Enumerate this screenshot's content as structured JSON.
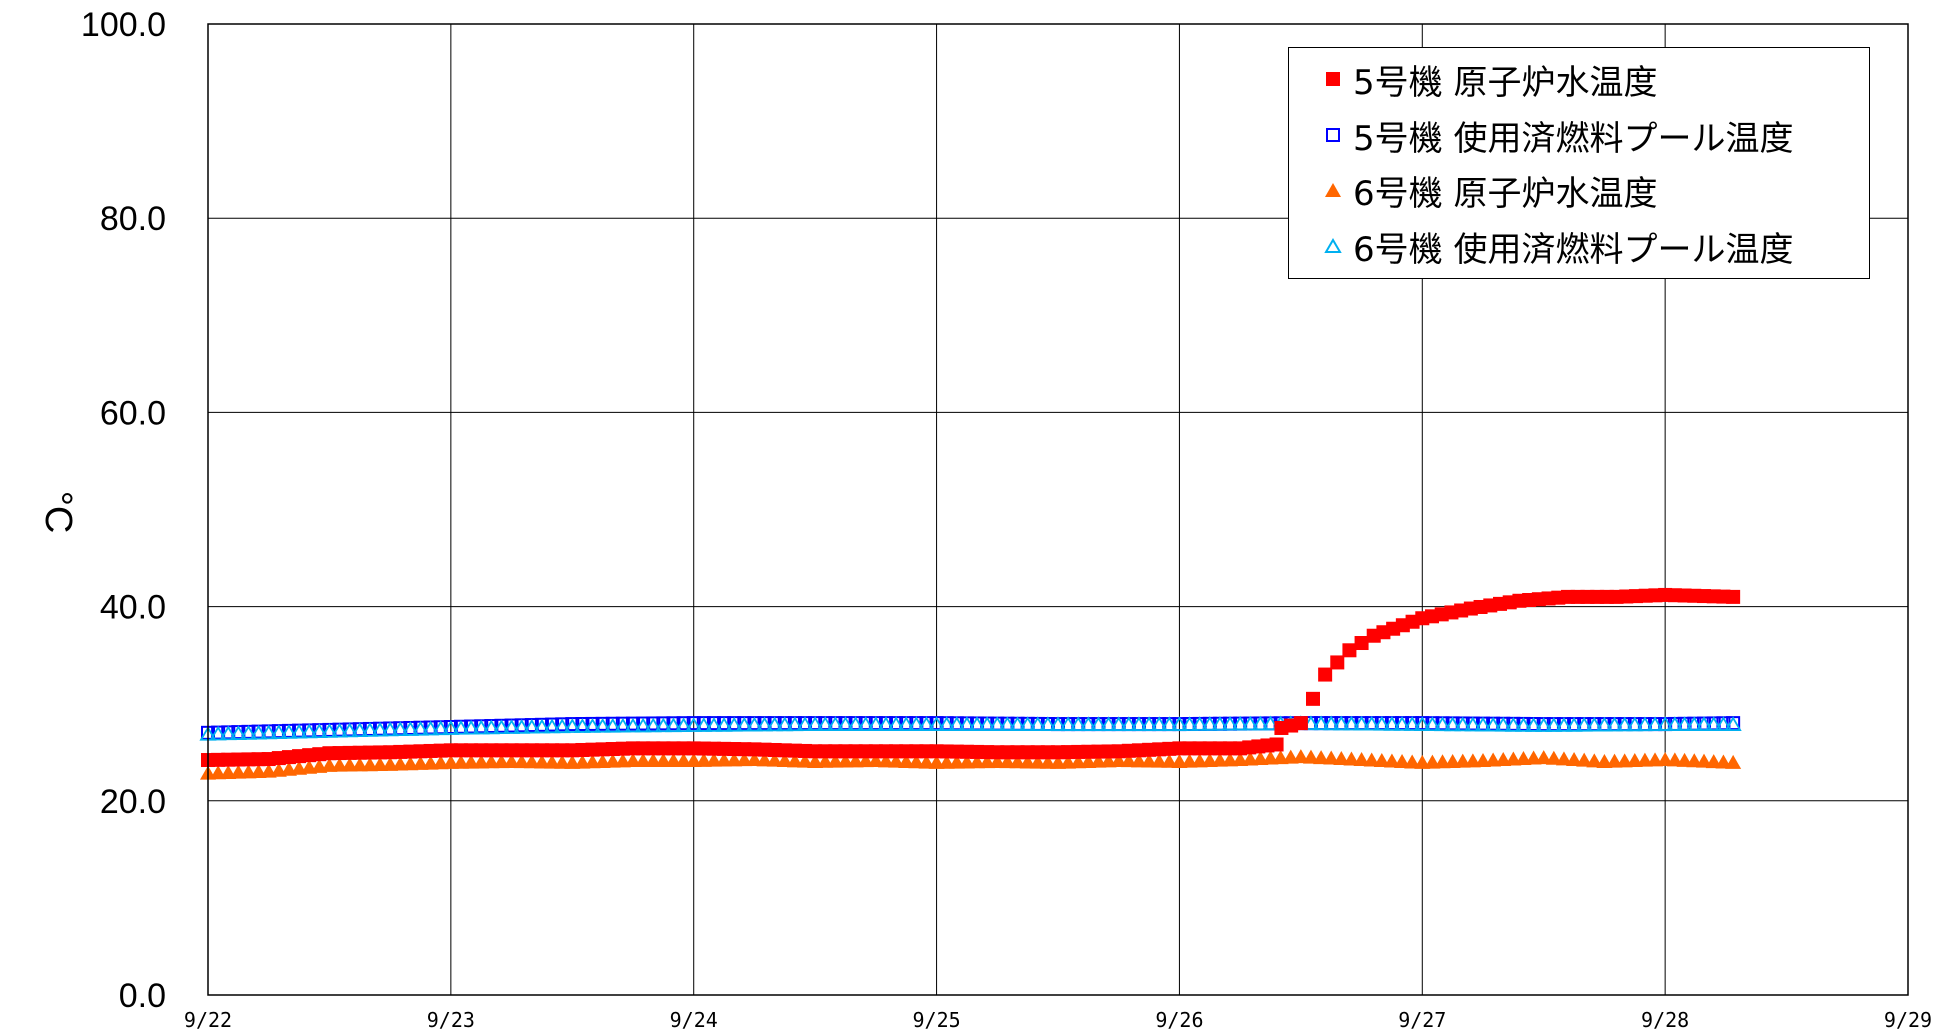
{
  "chart_data": {
    "type": "scatter",
    "ylabel": "°C",
    "ylim": [
      0,
      100
    ],
    "yticks": [
      "0.0",
      "20.0",
      "40.0",
      "60.0",
      "80.0",
      "100.0"
    ],
    "x_categories": [
      "9/22",
      "9/23",
      "9/24",
      "9/25",
      "9/26",
      "9/27",
      "9/28",
      "9/29"
    ],
    "grid": true,
    "legend_position": "top-right",
    "series": [
      {
        "name": "5号機 原子炉水温度",
        "marker": "filled-square",
        "color": "#ff0000",
        "points": [
          [
            0,
            24.2
          ],
          [
            0.25,
            24.3
          ],
          [
            0.5,
            24.9
          ],
          [
            0.75,
            25.0
          ],
          [
            1.0,
            25.2
          ],
          [
            1.25,
            25.2
          ],
          [
            1.5,
            25.2
          ],
          [
            1.75,
            25.4
          ],
          [
            2.0,
            25.4
          ],
          [
            2.25,
            25.3
          ],
          [
            2.5,
            25.1
          ],
          [
            2.75,
            25.1
          ],
          [
            3.0,
            25.1
          ],
          [
            3.25,
            25.0
          ],
          [
            3.5,
            25.0
          ],
          [
            3.75,
            25.1
          ],
          [
            4.0,
            25.4
          ],
          [
            4.25,
            25.4
          ],
          [
            4.4,
            25.8
          ],
          [
            4.42,
            27.5
          ],
          [
            4.5,
            28.0
          ],
          [
            4.55,
            30.5
          ],
          [
            4.6,
            33.0
          ],
          [
            4.7,
            35.5
          ],
          [
            4.8,
            37.0
          ],
          [
            5.0,
            38.8
          ],
          [
            5.2,
            39.8
          ],
          [
            5.4,
            40.6
          ],
          [
            5.6,
            41.0
          ],
          [
            5.8,
            41.0
          ],
          [
            6.0,
            41.2
          ],
          [
            6.28,
            41.0
          ]
        ]
      },
      {
        "name": "5号機 使用済燃料プール温度",
        "marker": "hollow-square",
        "color": "#0000ff",
        "points": [
          [
            0,
            27.0
          ],
          [
            0.5,
            27.3
          ],
          [
            1.0,
            27.6
          ],
          [
            1.5,
            27.9
          ],
          [
            2.0,
            28.0
          ],
          [
            2.5,
            28.0
          ],
          [
            3.0,
            28.0
          ],
          [
            3.5,
            27.9
          ],
          [
            4.0,
            27.9
          ],
          [
            4.5,
            28.0
          ],
          [
            5.0,
            28.0
          ],
          [
            5.5,
            27.9
          ],
          [
            6.0,
            27.9
          ],
          [
            6.28,
            28.0
          ]
        ]
      },
      {
        "name": "6号機 原子炉水温度",
        "marker": "filled-triangle",
        "color": "#ff6600",
        "points": [
          [
            0,
            22.8
          ],
          [
            0.25,
            23.0
          ],
          [
            0.5,
            23.6
          ],
          [
            0.75,
            23.7
          ],
          [
            1.0,
            23.9
          ],
          [
            1.25,
            24.0
          ],
          [
            1.5,
            23.9
          ],
          [
            1.75,
            24.1
          ],
          [
            2.0,
            24.1
          ],
          [
            2.25,
            24.2
          ],
          [
            2.5,
            24.0
          ],
          [
            2.75,
            24.1
          ],
          [
            3.0,
            23.9
          ],
          [
            3.25,
            24.0
          ],
          [
            3.5,
            23.9
          ],
          [
            3.75,
            24.1
          ],
          [
            4.0,
            24.0
          ],
          [
            4.25,
            24.2
          ],
          [
            4.5,
            24.5
          ],
          [
            4.75,
            24.2
          ],
          [
            5.0,
            23.9
          ],
          [
            5.25,
            24.1
          ],
          [
            5.5,
            24.4
          ],
          [
            5.75,
            24.0
          ],
          [
            6.0,
            24.2
          ],
          [
            6.28,
            23.9
          ]
        ]
      },
      {
        "name": "6号機 使用済燃料プール温度",
        "marker": "hollow-triangle",
        "color": "#00b0f0",
        "points": [
          [
            0,
            26.8
          ],
          [
            0.5,
            27.1
          ],
          [
            1.0,
            27.4
          ],
          [
            1.5,
            27.6
          ],
          [
            2.0,
            27.7
          ],
          [
            2.5,
            27.8
          ],
          [
            3.0,
            27.8
          ],
          [
            3.5,
            27.8
          ],
          [
            4.0,
            27.8
          ],
          [
            4.5,
            27.9
          ],
          [
            5.0,
            27.8
          ],
          [
            5.5,
            27.7
          ],
          [
            6.0,
            27.8
          ],
          [
            6.28,
            27.8
          ]
        ]
      }
    ]
  }
}
